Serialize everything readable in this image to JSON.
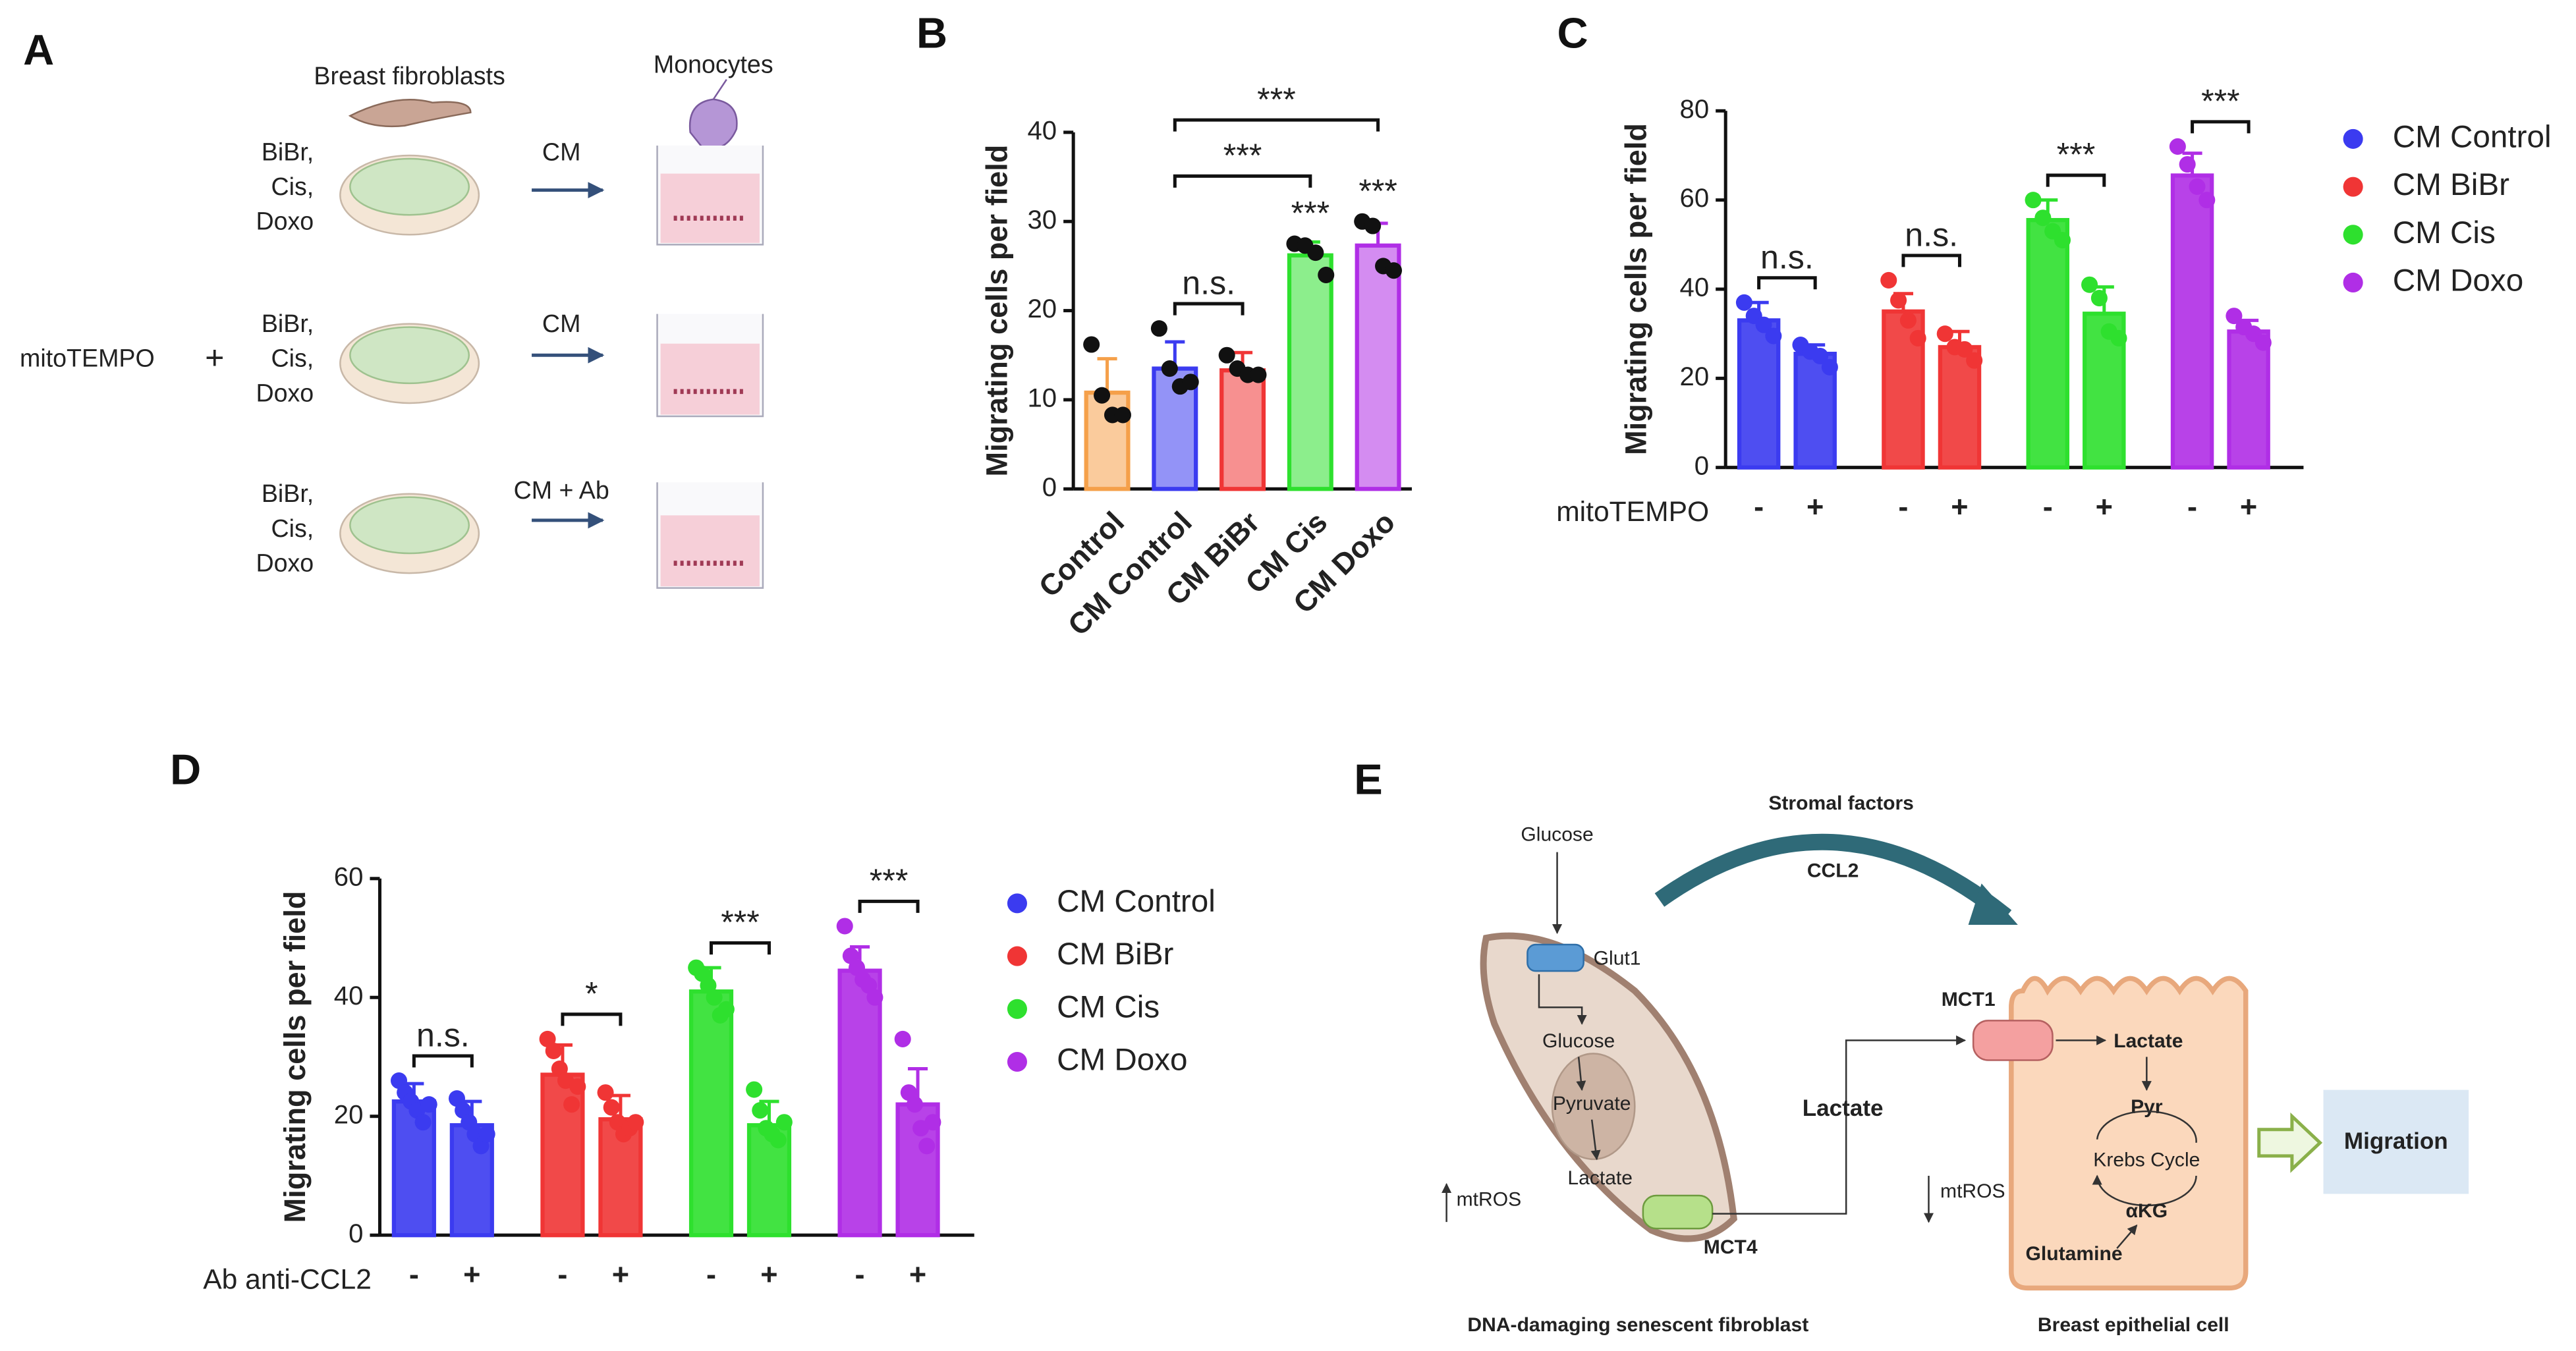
{
  "chart_data": [
    {
      "type": "bar",
      "panel_label": "B",
      "y_label": "Migrating cells per field",
      "categories": [
        "Control",
        "CM Control",
        "CM BiBr",
        "CM Cis",
        "CM Doxo"
      ],
      "colors": [
        "#f5a04a",
        "#3b3bf0",
        "#f03535",
        "#2ee02e",
        "#b02ee6"
      ],
      "values": [
        10.8,
        13.5,
        13.3,
        26.2,
        27.3
      ],
      "errors": [
        3.8,
        3,
        2,
        1.5,
        2.5
      ],
      "points": [
        [
          16.2,
          10.5,
          8.3,
          8.3
        ],
        [
          18,
          13.5,
          11.5,
          12
        ],
        [
          15,
          13.5,
          12.8,
          12.8
        ],
        [
          27.5,
          27.3,
          26.5,
          24
        ],
        [
          30,
          29.5,
          25,
          24.5
        ]
      ],
      "ylim": [
        0,
        40
      ],
      "yticks": [
        0,
        10,
        20,
        30,
        40
      ],
      "annotations": [
        {
          "text": "***",
          "over": [
            "CM Cis"
          ]
        },
        {
          "text": "***",
          "over": [
            "CM Doxo"
          ]
        },
        {
          "text": "n.s.",
          "between": [
            "CM Control",
            "CM BiBr"
          ]
        },
        {
          "text": "***",
          "between": [
            "CM Control",
            "CM Cis"
          ]
        },
        {
          "text": "***",
          "between": [
            "CM Control",
            "CM Doxo"
          ]
        }
      ]
    },
    {
      "type": "grouped_bar",
      "panel_label": "C",
      "y_label": "Migrating cells per field",
      "row_label": "mitoTEMPO",
      "tick_labels": [
        "-",
        "+"
      ],
      "groups": [
        {
          "name": "CM Control",
          "color": "#3b3bf0",
          "values": [
            33,
            25.5
          ],
          "errors": [
            4,
            2
          ],
          "points": [
            [
              37,
              34,
              32,
              29.5
            ],
            [
              27.5,
              26,
              25,
              22.5
            ]
          ],
          "annotation": "n.s."
        },
        {
          "name": "CM BiBr",
          "color": "#f03535",
          "values": [
            35,
            27
          ],
          "errors": [
            4,
            3.5
          ],
          "points": [
            [
              42,
              37.5,
              33,
              29
            ],
            [
              30,
              27,
              26.5,
              24
            ]
          ],
          "annotation": "n.s."
        },
        {
          "name": "CM Cis",
          "color": "#2ee02e",
          "values": [
            55.5,
            34.5
          ],
          "errors": [
            4.5,
            6
          ],
          "points": [
            [
              60,
              56,
              53,
              51
            ],
            [
              41,
              38,
              30.5,
              29
            ]
          ],
          "annotation": "***"
        },
        {
          "name": "CM Doxo",
          "color": "#b02ee6",
          "values": [
            65.5,
            30.5
          ],
          "errors": [
            5,
            2.5
          ],
          "points": [
            [
              72,
              68,
              63,
              60
            ],
            [
              34,
              31.5,
              30,
              28
            ]
          ],
          "annotation": "***"
        }
      ],
      "ylim": [
        0,
        80
      ],
      "yticks": [
        0,
        20,
        40,
        60,
        80
      ]
    },
    {
      "type": "grouped_bar",
      "panel_label": "D",
      "y_label": "Migrating cells per field",
      "row_label": "Ab anti-CCL2",
      "tick_labels": [
        "-",
        "+"
      ],
      "groups": [
        {
          "name": "CM Control",
          "color": "#3b3bf0",
          "values": [
            22.5,
            18.5
          ],
          "errors": [
            3,
            4
          ],
          "points": [
            [
              26,
              24,
              22.5,
              21,
              19,
              22
            ],
            [
              23,
              21,
              19,
              17,
              15,
              17
            ]
          ],
          "annotation": "n.s."
        },
        {
          "name": "CM BiBr",
          "color": "#f03535",
          "values": [
            27,
            19.5
          ],
          "errors": [
            5,
            4
          ],
          "points": [
            [
              33,
              31,
              28,
              26,
              22,
              25
            ],
            [
              24,
              21.5,
              19,
              17,
              18,
              19
            ]
          ],
          "annotation": "*"
        },
        {
          "name": "CM Cis",
          "color": "#2ee02e",
          "values": [
            41,
            18.5
          ],
          "errors": [
            4,
            4
          ],
          "points": [
            [
              45,
              44,
              42,
              40,
              37,
              38
            ],
            [
              24.5,
              21,
              18,
              17,
              16,
              19
            ]
          ],
          "annotation": "***"
        },
        {
          "name": "CM Doxo",
          "color": "#b02ee6",
          "values": [
            44.5,
            22
          ],
          "errors": [
            4,
            6
          ],
          "points": [
            [
              52,
              47,
              45,
              43,
              42,
              40
            ],
            [
              33,
              24,
              22,
              18,
              15,
              19
            ]
          ],
          "annotation": "***"
        }
      ],
      "ylim": [
        0,
        60
      ],
      "yticks": [
        0,
        20,
        40,
        60
      ]
    }
  ],
  "panel_a": {
    "label": "A",
    "fibroblasts": "Breast fibroblasts",
    "monocytes": "Monocytes",
    "drugs": [
      "BiBr,",
      "Cis,",
      "Doxo"
    ],
    "cm": "CM",
    "pretreat": "mitoTEMPO",
    "plus": "+",
    "cm_ab": "CM + Ab"
  },
  "panel_e": {
    "label": "E",
    "stromal": "Stromal factors",
    "ccl2": "CCL2",
    "glucose_in": "Glucose",
    "glut1": "Glut1",
    "glucose": "Glucose",
    "pyruvate": "Pyruvate",
    "lactate_f": "Lactate",
    "mtros_f": "mtROS",
    "mct4": "MCT4",
    "fibroblast": "DNA-damaging senescent fibroblast",
    "lactate_mid": "Lactate",
    "mct1": "MCT1",
    "lactate_e": "Lactate",
    "pyr": "Pyr",
    "krebs": "Krebs Cycle",
    "akg": "αKG",
    "glutamine": "Glutamine",
    "mtros_e": "mtROS",
    "migration": "Migration",
    "epithelial": "Breast epithelial cell"
  }
}
